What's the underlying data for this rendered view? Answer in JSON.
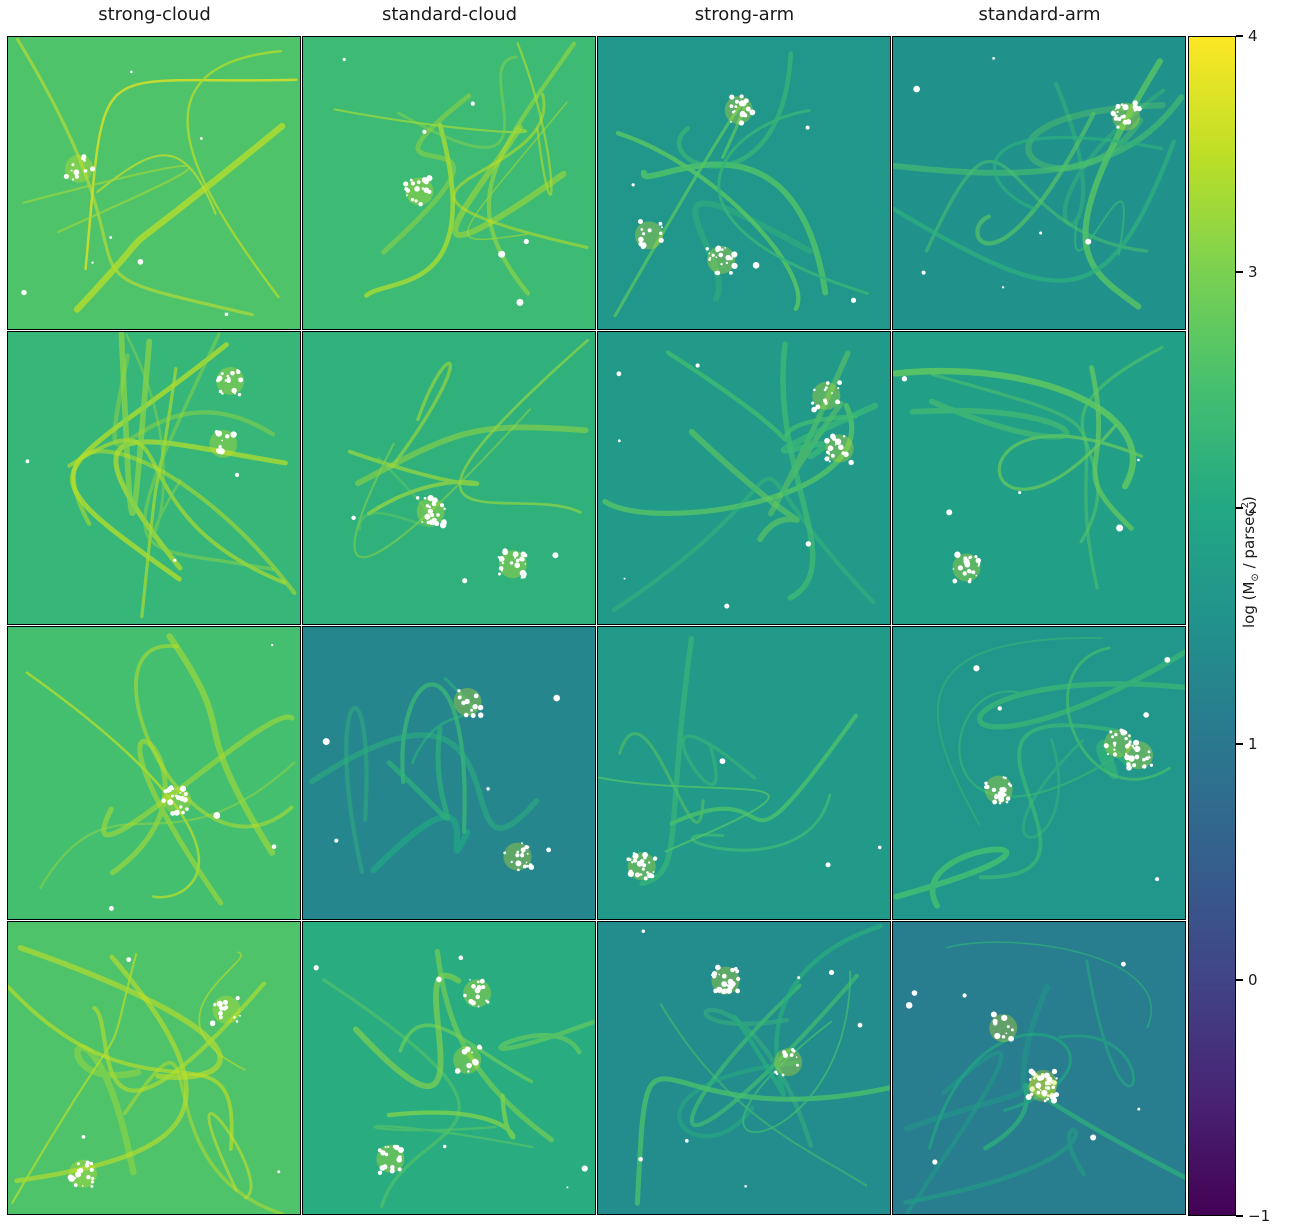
{
  "chart_data": {
    "type": "heatmap",
    "layout": "4x4 panel grid",
    "column_titles": [
      "strong-cloud",
      "standard-cloud",
      "strong-arm",
      "standard-arm"
    ],
    "rows": 4,
    "colormap": "viridis",
    "colorbar": {
      "label_prefix": "log (M",
      "label_sub": "⊙",
      "label_mid": " / parsec",
      "label_sup": "2",
      "label_suffix": ")",
      "vmin": -1,
      "vmax": 4,
      "ticks": [
        "4",
        "3",
        "2",
        "1",
        "0",
        "−1"
      ],
      "tick_values": [
        4,
        3,
        2,
        1,
        0,
        -1
      ]
    },
    "panels": [
      {
        "column": "strong-cloud",
        "row": 1,
        "background_level": 2.6
      },
      {
        "column": "standard-cloud",
        "row": 1,
        "background_level": 2.4
      },
      {
        "column": "strong-arm",
        "row": 1,
        "background_level": 1.6
      },
      {
        "column": "standard-arm",
        "row": 1,
        "background_level": 1.5
      },
      {
        "column": "strong-cloud",
        "row": 2,
        "background_level": 2.3
      },
      {
        "column": "standard-cloud",
        "row": 2,
        "background_level": 2.2
      },
      {
        "column": "strong-arm",
        "row": 2,
        "background_level": 1.7
      },
      {
        "column": "standard-arm",
        "row": 2,
        "background_level": 1.8
      },
      {
        "column": "strong-cloud",
        "row": 3,
        "background_level": 2.5
      },
      {
        "column": "standard-cloud",
        "row": 3,
        "background_level": 1.3
      },
      {
        "column": "strong-arm",
        "row": 3,
        "background_level": 1.7
      },
      {
        "column": "standard-arm",
        "row": 3,
        "background_level": 1.6
      },
      {
        "column": "strong-cloud",
        "row": 4,
        "background_level": 2.6
      },
      {
        "column": "standard-cloud",
        "row": 4,
        "background_level": 2.1
      },
      {
        "column": "strong-arm",
        "row": 4,
        "background_level": 1.4
      },
      {
        "column": "standard-arm",
        "row": 4,
        "background_level": 1.1
      }
    ]
  },
  "colors": {
    "viridis_low": "#440154",
    "viridis_high": "#fde725",
    "star_particles": "#ffffff",
    "panel_border": "#000000"
  }
}
